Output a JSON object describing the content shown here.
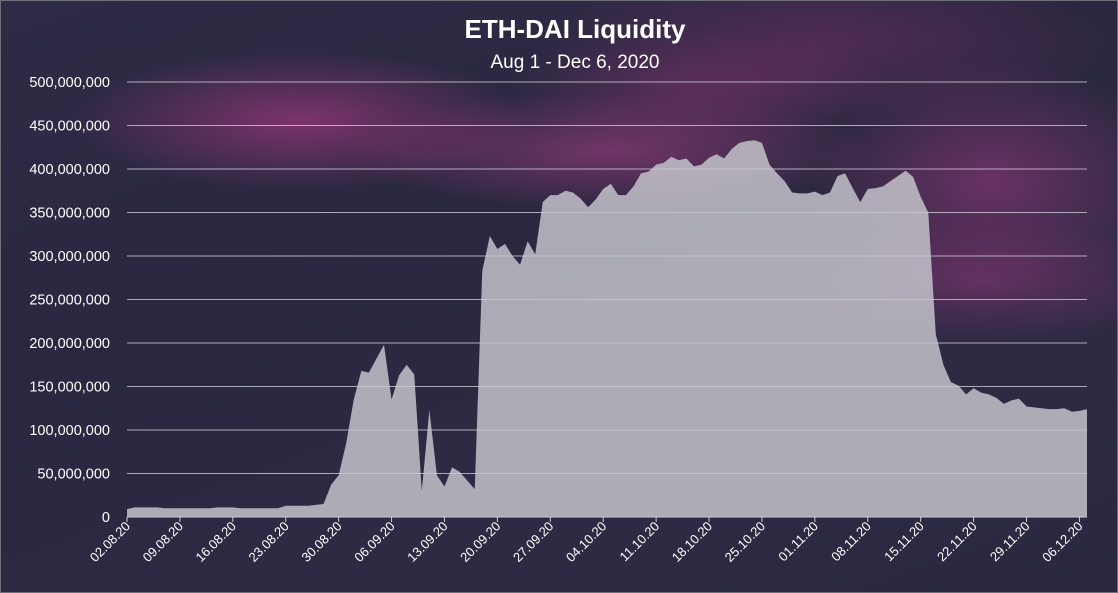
{
  "chart_data": {
    "type": "area",
    "title": "ETH-DAI Liquidity",
    "subtitle": "Aug 1 - Dec 6, 2020",
    "xlabel": "",
    "ylabel": "",
    "ylim": [
      0,
      500000000
    ],
    "y_ticks": [
      "0",
      "50,000,000",
      "100,000,000",
      "150,000,000",
      "200,000,000",
      "250,000,000",
      "300,000,000",
      "350,000,000",
      "400,000,000",
      "450,000,000",
      "500,000,000"
    ],
    "x_ticks": [
      "02.08.20",
      "09.08.20",
      "16.08.20",
      "23.08.20",
      "30.08.20",
      "06.09.20",
      "13.09.20",
      "20.09.20",
      "27.09.20",
      "04.10.20",
      "11.10.20",
      "18.10.20",
      "25.10.20",
      "01.11.20",
      "08.11.20",
      "15.11.20",
      "22.11.20",
      "29.11.20",
      "06.12.20"
    ],
    "grid": true,
    "fill_color": "#c8c8d0",
    "series": [
      {
        "x_start": "02.08.20",
        "interval": "1 day",
        "values": [
          9000000,
          11000000,
          11000000,
          11000000,
          11000000,
          10000000,
          10000000,
          10000000,
          10000000,
          10000000,
          10000000,
          10000000,
          11000000,
          11000000,
          11000000,
          10000000,
          10000000,
          10000000,
          10000000,
          10000000,
          10000000,
          13000000,
          13000000,
          13000000,
          13000000,
          14000000,
          15000000,
          37000000,
          48000000,
          85000000,
          135000000,
          168000000,
          166000000,
          182000000,
          198000000,
          135000000,
          163000000,
          175000000,
          164000000,
          30000000,
          123000000,
          48000000,
          35000000,
          57000000,
          52000000,
          42000000,
          32000000,
          283000000,
          323000000,
          308000000,
          314000000,
          300000000,
          290000000,
          317000000,
          302000000,
          362000000,
          370000000,
          370000000,
          375000000,
          373000000,
          366000000,
          356000000,
          365000000,
          377000000,
          383000000,
          370000000,
          370000000,
          380000000,
          395000000,
          397000000,
          405000000,
          407000000,
          414000000,
          410000000,
          412000000,
          403000000,
          405000000,
          413000000,
          417000000,
          412000000,
          423000000,
          430000000,
          432000000,
          433000000,
          430000000,
          405000000,
          395000000,
          386000000,
          373000000,
          372000000,
          372000000,
          374000000,
          370000000,
          373000000,
          392000000,
          395000000,
          378000000,
          362000000,
          377000000,
          378000000,
          380000000,
          386000000,
          392000000,
          398000000,
          391000000,
          368000000,
          350000000,
          210000000,
          175000000,
          155000000,
          151000000,
          141000000,
          148000000,
          143000000,
          141000000,
          137000000,
          130000000,
          134000000,
          136000000,
          127000000,
          126000000,
          125000000,
          124000000,
          124000000,
          125000000,
          121000000,
          122000000,
          124000000
        ]
      }
    ]
  }
}
